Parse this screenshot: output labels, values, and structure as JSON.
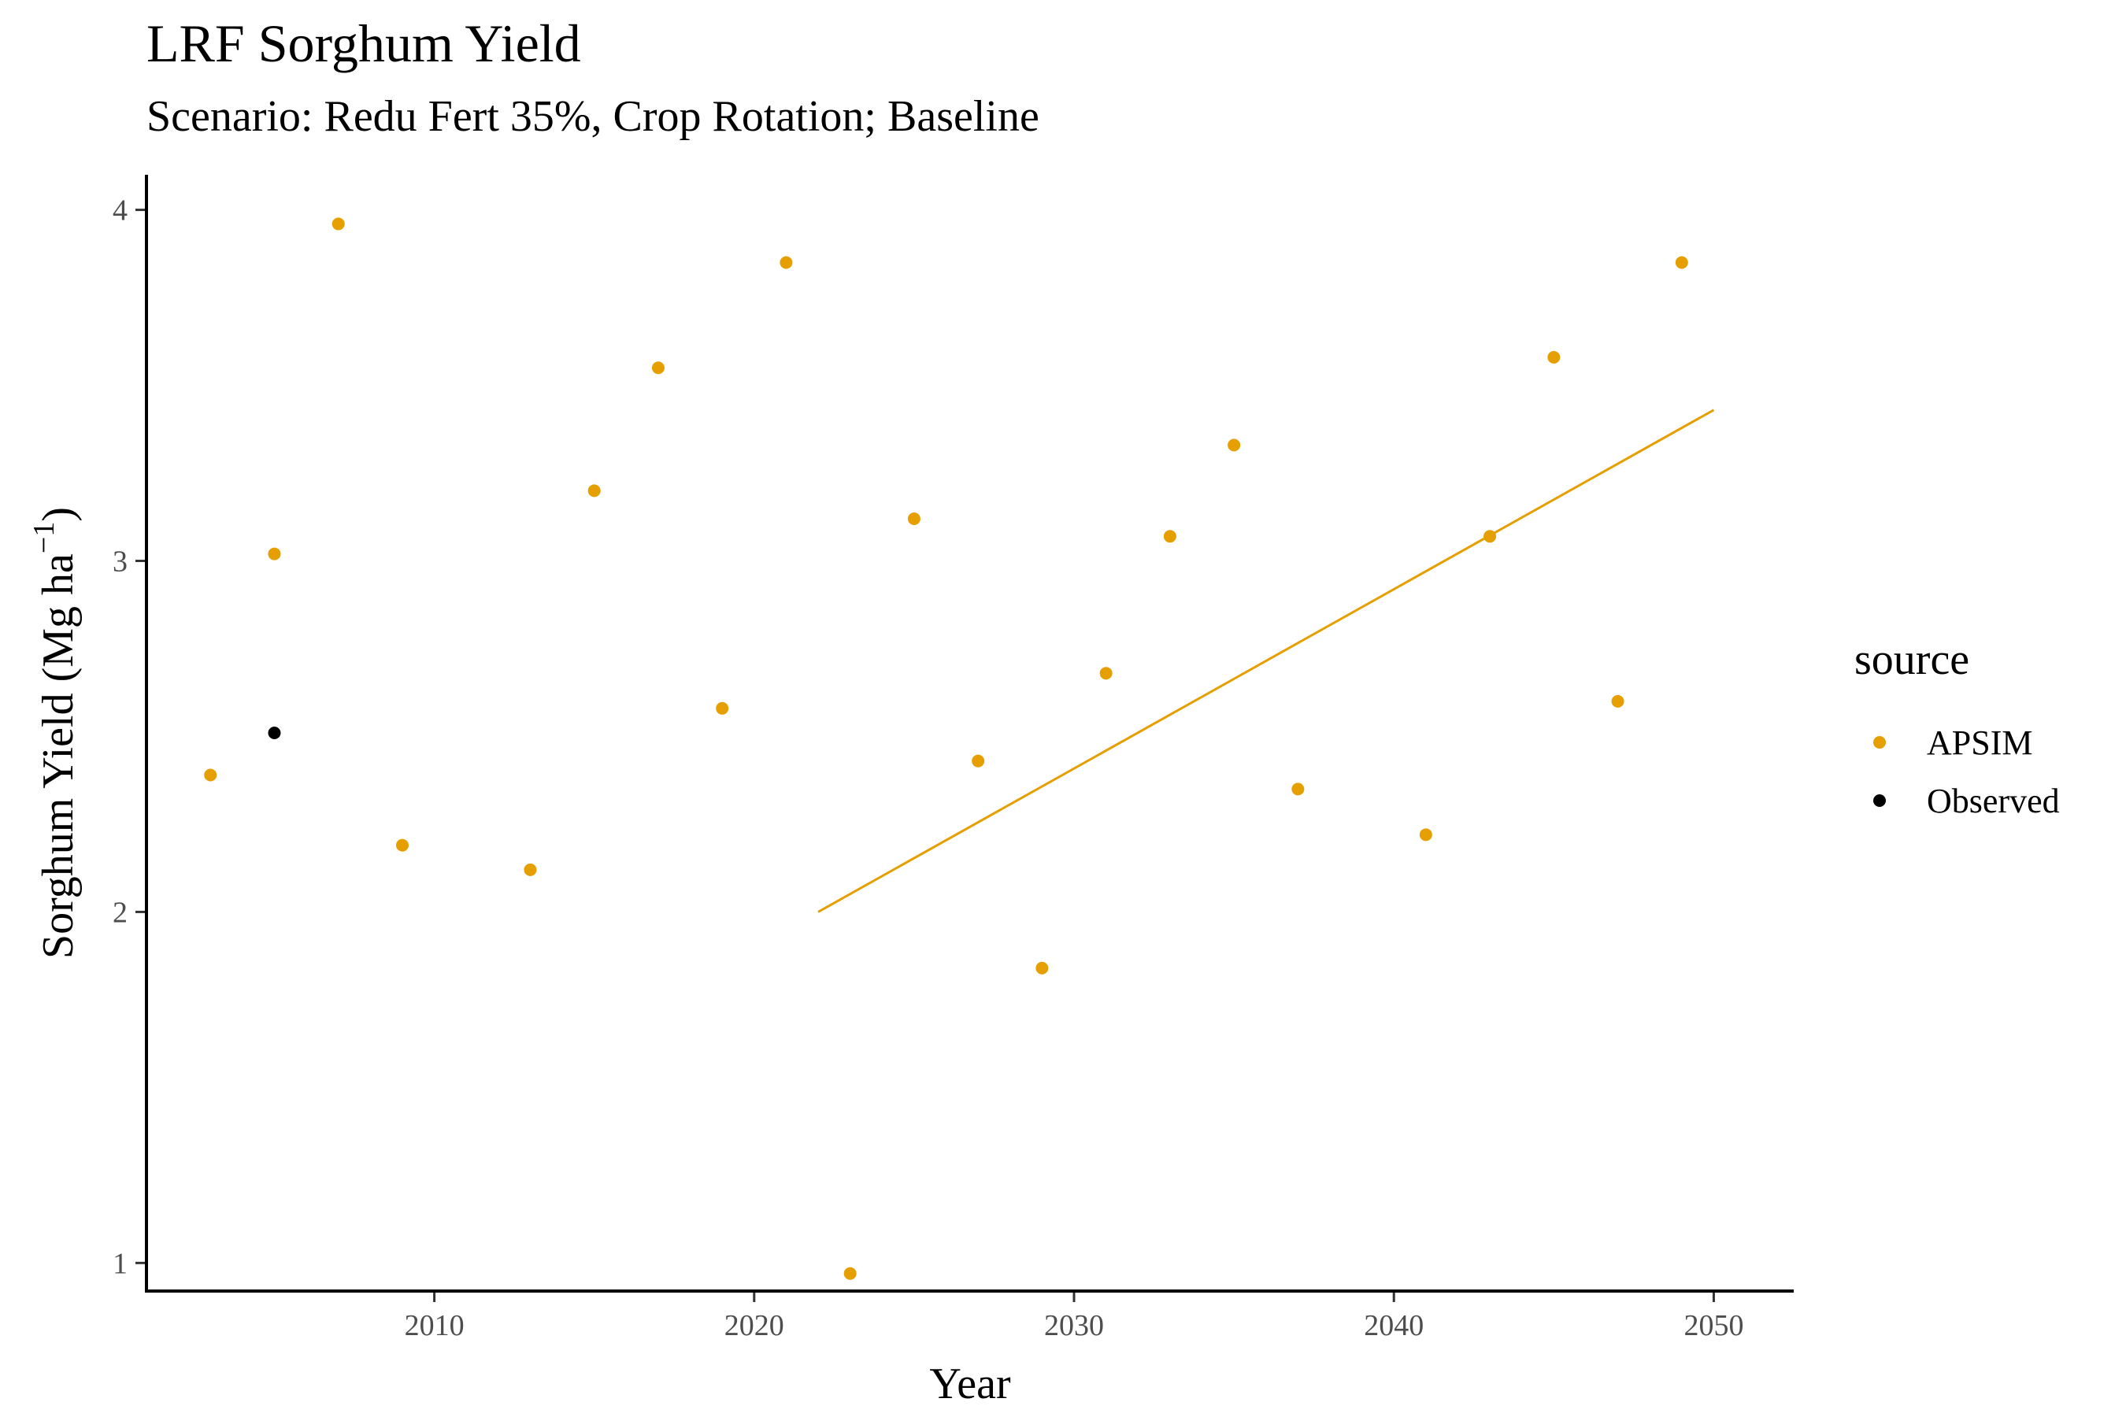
{
  "title": "LRF Sorghum Yield",
  "subtitle": "Scenario: Redu Fert 35%, Crop Rotation; Baseline",
  "legend": {
    "title": "source",
    "items": [
      {
        "label": "APSIM",
        "color": "#E69F00"
      },
      {
        "label": "Observed",
        "color": "#000000"
      }
    ]
  },
  "chart_data": {
    "type": "scatter",
    "xlabel": "Year",
    "ylabel": "Sorghum Yield (Mg ha",
    "ylabel_superscript": "−1",
    "xlim": [
      2001,
      2052.5
    ],
    "ylim": [
      0.92,
      4.1
    ],
    "x_ticks": [
      2010,
      2020,
      2030,
      2040,
      2050
    ],
    "y_ticks": [
      1,
      2,
      3,
      4
    ],
    "grid": false,
    "legend_position": "right",
    "series": [
      {
        "name": "APSIM",
        "color": "#E69F00",
        "points": [
          {
            "x": 2003,
            "y": 2.39
          },
          {
            "x": 2005,
            "y": 3.02
          },
          {
            "x": 2007,
            "y": 3.96
          },
          {
            "x": 2009,
            "y": 2.19
          },
          {
            "x": 2013,
            "y": 2.12
          },
          {
            "x": 2015,
            "y": 3.2
          },
          {
            "x": 2017,
            "y": 3.55
          },
          {
            "x": 2019,
            "y": 2.58
          },
          {
            "x": 2021,
            "y": 3.85
          },
          {
            "x": 2023,
            "y": 0.97
          },
          {
            "x": 2025,
            "y": 3.12
          },
          {
            "x": 2027,
            "y": 2.43
          },
          {
            "x": 2029,
            "y": 1.84
          },
          {
            "x": 2031,
            "y": 2.68
          },
          {
            "x": 2033,
            "y": 3.07
          },
          {
            "x": 2035,
            "y": 3.33
          },
          {
            "x": 2037,
            "y": 2.35
          },
          {
            "x": 2041,
            "y": 2.22
          },
          {
            "x": 2043,
            "y": 3.07
          },
          {
            "x": 2045,
            "y": 3.58
          },
          {
            "x": 2047,
            "y": 2.6
          },
          {
            "x": 2049,
            "y": 3.85
          }
        ]
      },
      {
        "name": "Observed",
        "color": "#000000",
        "points": [
          {
            "x": 2005,
            "y": 2.51
          }
        ]
      }
    ],
    "trend_line": {
      "series": "APSIM",
      "color": "#E69F00",
      "x": [
        2022,
        2050
      ],
      "y": [
        2.0,
        3.43
      ]
    }
  }
}
